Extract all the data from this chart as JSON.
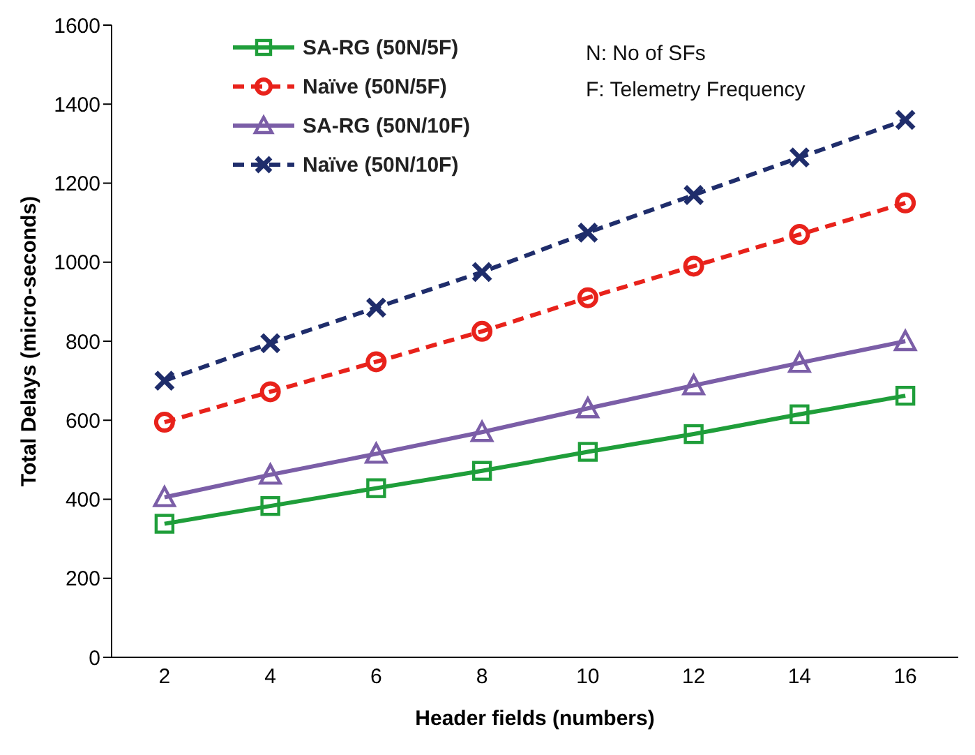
{
  "chart_data": {
    "type": "line",
    "xlabel": "Header fields (numbers)",
    "ylabel": "Total Delays (micro-seconds)",
    "categories": [
      "2",
      "4",
      "6",
      "8",
      "10",
      "12",
      "14",
      "16"
    ],
    "series": [
      {
        "name": "SA-RG (50N/5F)",
        "color": "#1f9e3a",
        "marker": "square",
        "line_style": "solid",
        "values": [
          338,
          383,
          428,
          472,
          520,
          565,
          615,
          662
        ]
      },
      {
        "name": "Naïve  (50N/5F)",
        "color": "#e8221b",
        "marker": "circle",
        "line_style": "dashed",
        "values": [
          595,
          672,
          748,
          825,
          910,
          990,
          1070,
          1150
        ]
      },
      {
        "name": "SA-RG (50N/10F)",
        "color": "#7b5ea7",
        "marker": "triangle",
        "line_style": "solid",
        "values": [
          405,
          462,
          515,
          570,
          630,
          688,
          745,
          800
        ]
      },
      {
        "name": "Naïve  (50N/10F)",
        "color": "#1f2d6b",
        "marker": "cross",
        "line_style": "dashed",
        "values": [
          700,
          795,
          885,
          975,
          1075,
          1170,
          1265,
          1360
        ]
      }
    ],
    "ylim": [
      0,
      1600
    ],
    "yticks": [
      0,
      200,
      400,
      600,
      800,
      1000,
      1200,
      1400,
      1600
    ],
    "grid": false,
    "legend": "top left",
    "annotations": [
      "N: No of SFs",
      "F: Telemetry Frequency"
    ]
  }
}
